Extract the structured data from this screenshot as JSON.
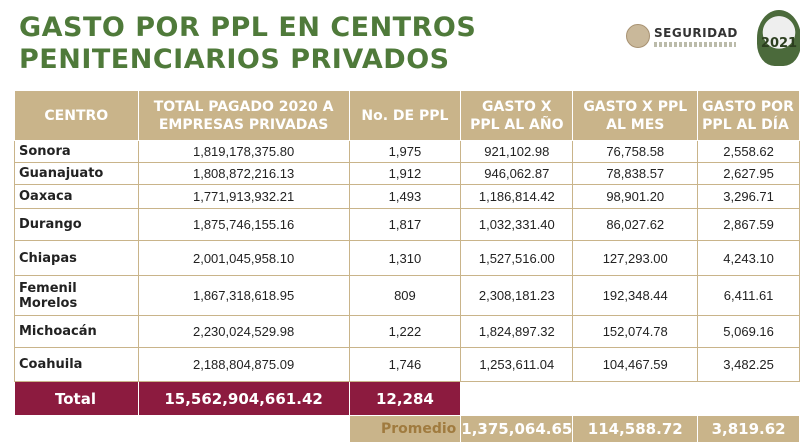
{
  "title_line1": "GASTO POR PPL EN CENTROS",
  "title_line2": "PENITENCIARIOS PRIVADOS",
  "logo": {
    "name": "SEGURIDAD",
    "year": "2021"
  },
  "headers": {
    "c0": "CENTRO",
    "c1a": "TOTAL PAGADO 2020 A",
    "c1b": "EMPRESAS PRIVADAS",
    "c2": "No. DE PPL",
    "c3a": "GASTO X",
    "c3b": "PPL AL AÑO",
    "c4a": "GASTO X PPL",
    "c4b": "AL MES",
    "c5a": "GASTO POR",
    "c5b": "PPL AL DÍA"
  },
  "rows": [
    {
      "centro": "Sonora",
      "total": "1,819,178,375.80",
      "ppl": "1,975",
      "anio": "921,102.98",
      "mes": "76,758.58",
      "dia": "2,558.62"
    },
    {
      "centro": "Guanajuato",
      "total": "1,808,872,216.13",
      "ppl": "1,912",
      "anio": "946,062.87",
      "mes": "78,838.57",
      "dia": "2,627.95"
    },
    {
      "centro": "Oaxaca",
      "total": "1,771,913,932.21",
      "ppl": "1,493",
      "anio": "1,186,814.42",
      "mes": "98,901.20",
      "dia": "3,296.71"
    },
    {
      "centro": "Durango",
      "total": "1,875,746,155.16",
      "ppl": "1,817",
      "anio": "1,032,331.40",
      "mes": "86,027.62",
      "dia": "2,867.59"
    },
    {
      "centro": "Chiapas",
      "total": "2,001,045,958.10",
      "ppl": "1,310",
      "anio": "1,527,516.00",
      "mes": "127,293.00",
      "dia": "4,243.10"
    },
    {
      "centro_a": "Femenil",
      "centro_b": "Morelos",
      "total": "1,867,318,618.95",
      "ppl": "809",
      "anio": "2,308,181.23",
      "mes": "192,348.44",
      "dia": "6,411.61"
    },
    {
      "centro": "Michoacán",
      "total": "2,230,024,529.98",
      "ppl": "1,222",
      "anio": "1,824,897.32",
      "mes": "152,074.78",
      "dia": "5,069.16"
    },
    {
      "centro": "Coahuila",
      "total": "2,188,804,875.09",
      "ppl": "1,746",
      "anio": "1,253,611.04",
      "mes": "104,467.59",
      "dia": "3,482.25"
    }
  ],
  "total": {
    "label": "Total",
    "amount": "15,562,904,661.42",
    "ppl": "12,284"
  },
  "promedio": {
    "label": "Promedio",
    "anio": "1,375,064.65",
    "mes": "114,588.72",
    "dia": "3,819.62"
  }
}
